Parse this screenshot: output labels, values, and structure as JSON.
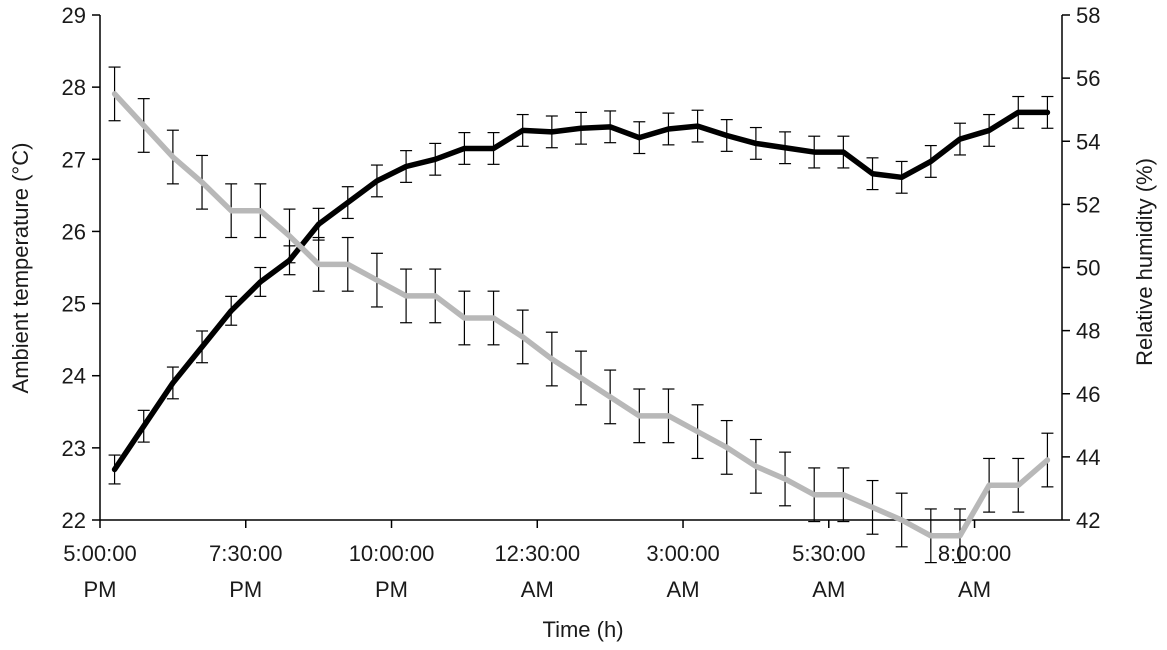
{
  "chart_data": {
    "type": "line",
    "xlabel": "Time (h)",
    "ylabel_left": "Ambient temperature (°C)",
    "ylabel_right": "Relative humidity (%)",
    "ylim_left": [
      22,
      29
    ],
    "ylim_right": [
      42,
      58
    ],
    "yticks_left": [
      22,
      23,
      24,
      25,
      26,
      27,
      28,
      29
    ],
    "yticks_right": [
      42,
      44,
      46,
      48,
      50,
      52,
      54,
      56,
      58
    ],
    "xlim_hours_from_5pm": [
      0,
      16.5
    ],
    "xticks": [
      {
        "at": 0,
        "lines": [
          "5:00:00",
          "PM"
        ]
      },
      {
        "at": 2.5,
        "lines": [
          "7:30:00",
          "PM"
        ]
      },
      {
        "at": 5,
        "lines": [
          "10:00:00",
          "PM"
        ]
      },
      {
        "at": 7.5,
        "lines": [
          "12:30:00",
          "AM"
        ]
      },
      {
        "at": 10,
        "lines": [
          "3:00:00",
          "AM"
        ]
      },
      {
        "at": 12.5,
        "lines": [
          "5:30:00",
          "AM"
        ]
      },
      {
        "at": 15,
        "lines": [
          "8:00:00",
          "AM"
        ]
      }
    ],
    "grid": false,
    "series": [
      {
        "axis": "left",
        "color": "#000000",
        "x": [
          0.25,
          0.75,
          1.25,
          1.75,
          2.25,
          2.75,
          3.25,
          3.75,
          4.25,
          4.75,
          5.25,
          5.75,
          6.25,
          6.75,
          7.25,
          7.75,
          8.25,
          8.75,
          9.25,
          9.75,
          10.25,
          10.75,
          11.25,
          11.75,
          12.25,
          12.75,
          13.25,
          13.75,
          14.25,
          14.75,
          15.25,
          15.75,
          16.25
        ],
        "values": [
          22.7,
          23.3,
          23.9,
          24.4,
          24.9,
          25.3,
          25.6,
          26.1,
          26.4,
          26.7,
          26.9,
          27.0,
          27.15,
          27.15,
          27.4,
          27.38,
          27.43,
          27.45,
          27.3,
          27.42,
          27.46,
          27.33,
          27.22,
          27.16,
          27.1,
          27.1,
          26.8,
          26.75,
          26.97,
          27.28,
          27.4,
          27.65,
          27.65
        ],
        "errors": [
          0.2,
          0.22,
          0.22,
          0.22,
          0.2,
          0.2,
          0.2,
          0.22,
          0.22,
          0.22,
          0.22,
          0.22,
          0.22,
          0.22,
          0.22,
          0.22,
          0.22,
          0.22,
          0.22,
          0.22,
          0.22,
          0.22,
          0.22,
          0.22,
          0.22,
          0.22,
          0.22,
          0.22,
          0.22,
          0.22,
          0.22,
          0.22,
          0.22
        ]
      },
      {
        "axis": "right",
        "color": "#b8b8b8",
        "x": [
          0.25,
          0.75,
          1.25,
          1.75,
          2.25,
          2.75,
          3.25,
          3.75,
          4.25,
          4.75,
          5.25,
          5.75,
          6.25,
          6.75,
          7.25,
          7.75,
          8.25,
          8.75,
          9.25,
          9.75,
          10.25,
          10.75,
          11.25,
          11.75,
          12.25,
          12.75,
          13.25,
          13.75,
          14.25,
          14.75,
          15.25,
          15.75,
          16.25
        ],
        "values": [
          55.5,
          54.5,
          53.5,
          52.7,
          51.8,
          51.8,
          51.0,
          50.1,
          50.1,
          49.6,
          49.1,
          49.1,
          48.4,
          48.4,
          47.8,
          47.1,
          46.5,
          45.9,
          45.3,
          45.3,
          44.8,
          44.3,
          43.7,
          43.3,
          42.8,
          42.8,
          42.4,
          42.0,
          41.5,
          41.5,
          43.1,
          43.1,
          43.9
        ]
      }
    ]
  }
}
